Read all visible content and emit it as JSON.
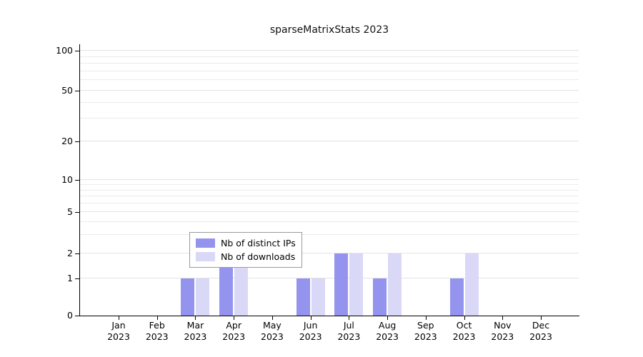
{
  "title": "sparseMatrixStats 2023",
  "chart_data": {
    "type": "bar",
    "title": "sparseMatrixStats 2023",
    "xlabel": "",
    "ylabel": "",
    "categories": [
      "Jan",
      "Feb",
      "Mar",
      "Apr",
      "May",
      "Jun",
      "Jul",
      "Aug",
      "Sep",
      "Oct",
      "Nov",
      "Dec"
    ],
    "year_label": "2023",
    "series": [
      {
        "name": "Nb of distinct IPs",
        "color": "#9494ee",
        "values": [
          0,
          0,
          1,
          2,
          0,
          1,
          2,
          1,
          0,
          1,
          0,
          0
        ]
      },
      {
        "name": "Nb of downloads",
        "color": "#d9d9f7",
        "values": [
          0,
          0,
          1,
          3,
          0,
          1,
          2,
          2,
          0,
          2,
          0,
          0
        ]
      }
    ],
    "yticks": [
      0,
      1,
      2,
      5,
      10,
      20,
      50,
      100
    ],
    "minor_gridlines": [
      1,
      2,
      3,
      4,
      5,
      6,
      7,
      8,
      9,
      10,
      20,
      30,
      40,
      50,
      60,
      70,
      80,
      90,
      100
    ],
    "ylim": [
      0,
      100
    ],
    "scale": "log-like with zero baseline",
    "grid": true,
    "legend_position": "inside-bottom-center"
  }
}
